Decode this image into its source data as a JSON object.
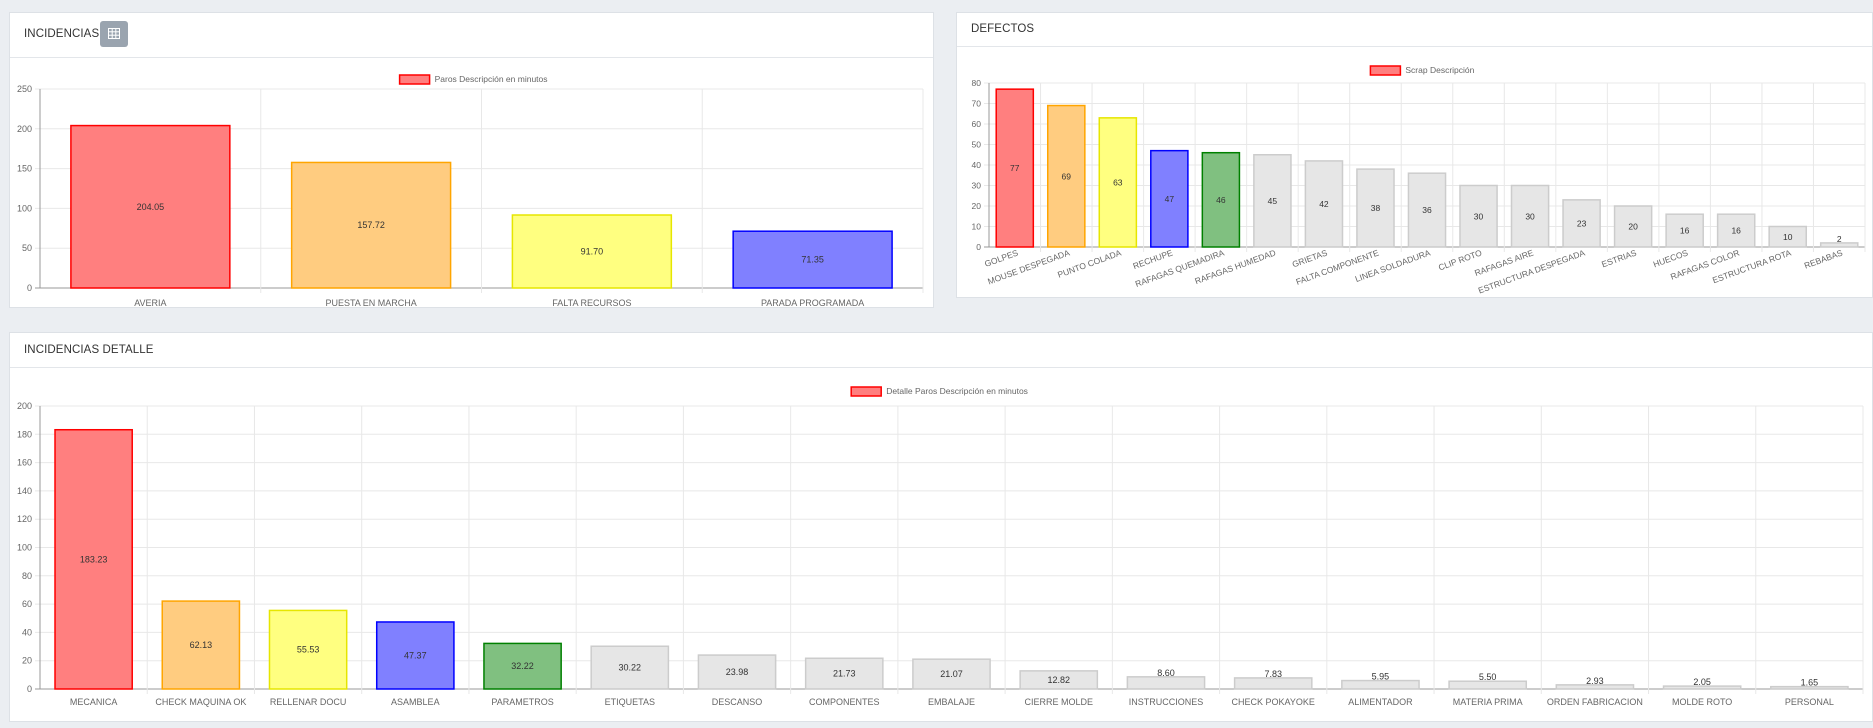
{
  "panels": {
    "incidencias": {
      "title": "INCIDENCIAS",
      "icon": "table-icon"
    },
    "defectos": {
      "title": "DEFECTOS"
    },
    "detalle": {
      "title": "INCIDENCIAS DETALLE"
    }
  },
  "chart_data": [
    {
      "type": "bar",
      "legend": "Paros Descripción en minutos",
      "categories": [
        "AVERIA",
        "PUESTA EN MARCHA",
        "FALTA RECURSOS",
        "PARADA PROGRAMADA"
      ],
      "values": [
        204.05,
        157.72,
        91.7,
        71.35
      ],
      "value_labels": [
        "204.05",
        "157.72",
        "91.70",
        "71.35"
      ],
      "ylim": [
        0,
        250
      ],
      "yticks": [
        "0",
        "50",
        "100",
        "150",
        "200",
        "250"
      ],
      "grid": true,
      "legend_position": "top-center",
      "bar_colors": [
        "#ff7f7f",
        "#ffcc80",
        "#ffff80",
        "#8080ff"
      ],
      "border_colors": [
        "#ff0000",
        "#ffa500",
        "#e6e600",
        "#0000ff"
      ]
    },
    {
      "type": "bar",
      "legend": "Scrap Descripción",
      "categories": [
        "GOLPES",
        "MOUSE DESPEGADA",
        "PUNTO COLADA",
        "RECHUPE",
        "RAFAGAS QUEMADIRA",
        "RAFAGAS HUMEDAD",
        "GRIETAS",
        "FALTA COMPONENTE",
        "LINEA SOLDADURA",
        "CLIP ROTO",
        "RAFAGAS AIRE",
        "ESTRUCTURA DESPEGADA",
        "ESTRIAS",
        "HUECOS",
        "RAFAGAS COLOR",
        "ESTRUCTURA ROTA",
        "REBABAS"
      ],
      "values": [
        77,
        69,
        63,
        47,
        46,
        45,
        42,
        38,
        36,
        30,
        30,
        23,
        20,
        16,
        16,
        10,
        2
      ],
      "value_labels": [
        "77",
        "69",
        "63",
        "47",
        "46",
        "45",
        "42",
        "38",
        "36",
        "30",
        "30",
        "23",
        "20",
        "16",
        "16",
        "10",
        "2"
      ],
      "ylim": [
        0,
        80
      ],
      "yticks": [
        "0",
        "10",
        "20",
        "30",
        "40",
        "50",
        "60",
        "70",
        "80"
      ],
      "grid": true,
      "legend_position": "top-center",
      "bar_colors": [
        "#ff7f7f",
        "#ffcc80",
        "#ffff80",
        "#8080ff",
        "#80c080",
        "#e6e6e6",
        "#e6e6e6",
        "#e6e6e6",
        "#e6e6e6",
        "#e6e6e6",
        "#e6e6e6",
        "#e6e6e6",
        "#e6e6e6",
        "#e6e6e6",
        "#e6e6e6",
        "#e6e6e6",
        "#e6e6e6"
      ],
      "border_colors": [
        "#ff0000",
        "#ffa500",
        "#e6e600",
        "#0000ff",
        "#008000",
        "#cccccc",
        "#cccccc",
        "#cccccc",
        "#cccccc",
        "#cccccc",
        "#cccccc",
        "#cccccc",
        "#cccccc",
        "#cccccc",
        "#cccccc",
        "#cccccc",
        "#cccccc"
      ]
    },
    {
      "type": "bar",
      "legend": "Detalle Paros Descripción en minutos",
      "categories": [
        "MECANICA",
        "CHECK MAQUINA OK",
        "RELLENAR DOCU",
        "ASAMBLEA",
        "PARAMETROS",
        "ETIQUETAS",
        "DESCANSO",
        "COMPONENTES",
        "EMBALAJE",
        "CIERRE MOLDE",
        "INSTRUCCIONES",
        "CHECK POKAYOKE",
        "ALIMENTADOR",
        "MATERIA PRIMA",
        "ORDEN FABRICACION",
        "MOLDE ROTO",
        "PERSONAL"
      ],
      "values": [
        183.23,
        62.13,
        55.53,
        47.37,
        32.22,
        30.22,
        23.98,
        21.73,
        21.07,
        12.82,
        8.6,
        7.83,
        5.95,
        5.5,
        2.93,
        2.05,
        1.65
      ],
      "value_labels": [
        "183.23",
        "62.13",
        "55.53",
        "47.37",
        "32.22",
        "30.22",
        "23.98",
        "21.73",
        "21.07",
        "12.82",
        "8.60",
        "7.83",
        "5.95",
        "5.50",
        "2.93",
        "2.05",
        "1.65"
      ],
      "ylim": [
        0,
        200
      ],
      "yticks": [
        "0",
        "20",
        "40",
        "60",
        "80",
        "100",
        "120",
        "140",
        "160",
        "180",
        "200"
      ],
      "grid": true,
      "legend_position": "top-center",
      "bar_colors": [
        "#ff7f7f",
        "#ffcc80",
        "#ffff80",
        "#8080ff",
        "#80c080",
        "#e6e6e6",
        "#e6e6e6",
        "#e6e6e6",
        "#e6e6e6",
        "#e6e6e6",
        "#e6e6e6",
        "#e6e6e6",
        "#e6e6e6",
        "#e6e6e6",
        "#e6e6e6",
        "#e6e6e6",
        "#e6e6e6"
      ],
      "border_colors": [
        "#ff0000",
        "#ffa500",
        "#e6e600",
        "#0000ff",
        "#008000",
        "#cccccc",
        "#cccccc",
        "#cccccc",
        "#cccccc",
        "#cccccc",
        "#cccccc",
        "#cccccc",
        "#cccccc",
        "#cccccc",
        "#cccccc",
        "#cccccc",
        "#cccccc"
      ]
    }
  ]
}
